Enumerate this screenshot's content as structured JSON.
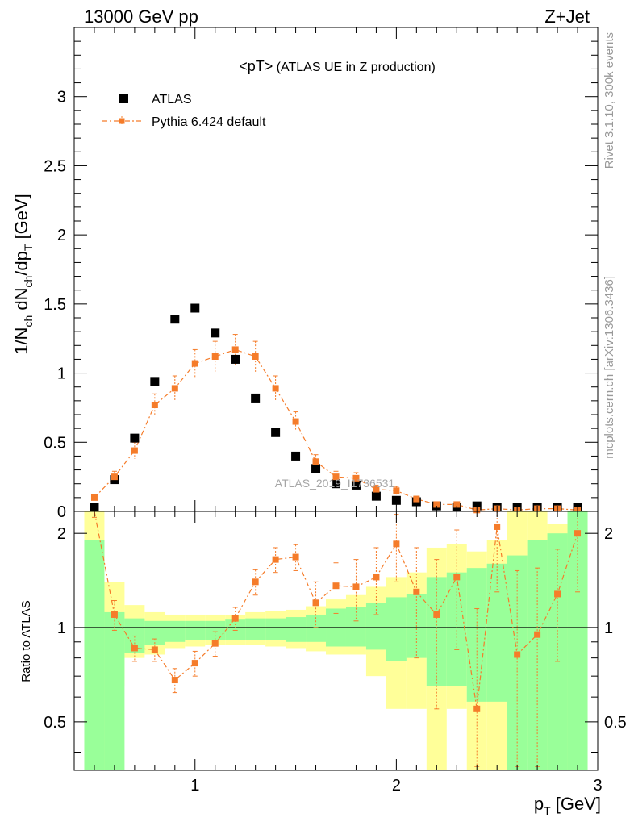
{
  "header": {
    "left": "13000 GeV pp",
    "right": "Z+Jet"
  },
  "side_labels": {
    "rivet": "Rivet 3.1.10,  300k events",
    "mcplots": "mcplots.cern.ch [arXiv:1306.3436]"
  },
  "main_plot": {
    "title_main": "<pT>",
    "title_sub": " (ATLAS UE in Z production)",
    "watermark": "ATLAS_2019_I1736531",
    "legend": [
      "ATLAS",
      "Pythia 6.424 default"
    ]
  },
  "ratio_plot": {
    "ylabel": "Ratio to ATLAS"
  },
  "colors": {
    "data": "#000000",
    "mc": "#f57c2a",
    "band_inner": "#99ff99",
    "band_outer": "#ffff99"
  },
  "chart_data": [
    {
      "type": "scatter",
      "ylabel_parts": [
        "1/N",
        "ch",
        " dN",
        "ch",
        "/dp",
        "T",
        " [GeV]"
      ],
      "xlabel_parts": [
        "p",
        "T",
        " [GeV]"
      ],
      "xlim": [
        0.4,
        3.0
      ],
      "ylim": [
        0,
        3.5
      ],
      "y_ticks": [
        0,
        0.5,
        1,
        1.5,
        2,
        2.5,
        3
      ],
      "y_tick_labels": [
        "0",
        "0.5",
        "1",
        "1.5",
        "2",
        "2.5",
        "3"
      ],
      "x": [
        0.5,
        0.6,
        0.7,
        0.8,
        0.9,
        1.0,
        1.1,
        1.2,
        1.3,
        1.4,
        1.5,
        1.6,
        1.7,
        1.8,
        1.9,
        2.0,
        2.1,
        2.2,
        2.3,
        2.4,
        2.5,
        2.6,
        2.7,
        2.8,
        2.9
      ],
      "series": [
        {
          "name": "ATLAS",
          "values": [
            0.03,
            0.23,
            0.53,
            0.94,
            1.39,
            1.47,
            1.29,
            1.1,
            0.82,
            0.57,
            0.4,
            0.31,
            0.2,
            0.19,
            0.11,
            0.08,
            0.07,
            0.04,
            0.03,
            0.04,
            0.01,
            0.02,
            0.03,
            0.01,
            0.005
          ]
        },
        {
          "name": "Pythia 6.424 default",
          "values": [
            0.1,
            0.25,
            0.44,
            0.77,
            0.89,
            1.07,
            1.12,
            1.17,
            1.12,
            0.89,
            0.65,
            0.36,
            0.25,
            0.24,
            0.16,
            0.15,
            0.09,
            0.05,
            0.05,
            0.01,
            0.02,
            0.01,
            0.02,
            0.02,
            0.01
          ],
          "errors": [
            0.02,
            0.04,
            0.06,
            0.08,
            0.09,
            0.1,
            0.11,
            0.11,
            0.11,
            0.09,
            0.07,
            0.05,
            0.04,
            0.04,
            0.03,
            0.03,
            0.02,
            0.02,
            0.02,
            0.01,
            0.01,
            0.01,
            0.01,
            0.01,
            0.01
          ]
        }
      ]
    },
    {
      "type": "scatter",
      "xlabel_parts": [
        "p",
        "T",
        " [GeV]"
      ],
      "ylabel": "Ratio to ATLAS",
      "xlim": [
        0.4,
        3.0
      ],
      "ylim": [
        0.35,
        2.35
      ],
      "y_ticks": [
        0.5,
        1,
        2
      ],
      "y_tick_labels": [
        "0.5",
        "1",
        "2"
      ],
      "x_ticks": [
        1,
        2,
        3
      ],
      "x_tick_labels": [
        "1",
        "2",
        "3"
      ],
      "x": [
        0.5,
        0.6,
        0.7,
        0.8,
        0.9,
        1.0,
        1.1,
        1.2,
        1.3,
        1.4,
        1.5,
        1.6,
        1.7,
        1.8,
        1.9,
        2.0,
        2.1,
        2.2,
        2.3,
        2.4,
        2.5,
        2.6,
        2.7,
        2.8,
        2.9
      ],
      "bin_edges": [
        0.45,
        0.55,
        0.65,
        0.75,
        0.85,
        0.95,
        1.05,
        1.15,
        1.25,
        1.35,
        1.45,
        1.55,
        1.65,
        1.75,
        1.85,
        1.95,
        2.05,
        2.15,
        2.25,
        2.35,
        2.45,
        2.55,
        2.65,
        2.75,
        2.85,
        2.95
      ],
      "band_inner": {
        "low": [
          0.3,
          0.3,
          0.83,
          0.88,
          0.9,
          0.91,
          0.91,
          0.91,
          0.91,
          0.91,
          0.9,
          0.9,
          0.87,
          0.87,
          0.85,
          0.78,
          0.8,
          0.65,
          0.65,
          0.58,
          0.58,
          0.3,
          0.3,
          0.3,
          0.3
        ],
        "high": [
          1.9,
          1.12,
          1.07,
          1.05,
          1.05,
          1.05,
          1.05,
          1.06,
          1.07,
          1.07,
          1.08,
          1.1,
          1.15,
          1.16,
          1.2,
          1.25,
          1.28,
          1.45,
          1.5,
          1.55,
          1.6,
          1.7,
          1.9,
          2.0,
          2.4
        ]
      },
      "band_outer": {
        "low": [
          0.3,
          0.65,
          0.8,
          0.82,
          0.86,
          0.87,
          0.88,
          0.88,
          0.88,
          0.87,
          0.86,
          0.84,
          0.82,
          0.82,
          0.7,
          0.55,
          0.55,
          0.3,
          0.55,
          0.3,
          0.3,
          0.3,
          0.38,
          0.3,
          0.3
        ],
        "high": [
          2.4,
          1.4,
          1.18,
          1.12,
          1.1,
          1.1,
          1.1,
          1.1,
          1.12,
          1.13,
          1.14,
          1.17,
          1.23,
          1.27,
          1.35,
          1.45,
          1.5,
          1.8,
          1.85,
          1.75,
          1.9,
          2.4,
          2.4,
          2.15,
          2.4
        ]
      },
      "series": [
        {
          "name": "Pythia 6.424 default",
          "values": [
            2.4,
            1.1,
            0.86,
            0.85,
            0.68,
            0.77,
            0.89,
            1.07,
            1.4,
            1.65,
            1.68,
            1.2,
            1.36,
            1.35,
            1.45,
            1.85,
            1.3,
            1.1,
            1.45,
            0.55,
            2.1,
            0.82,
            0.95,
            1.28,
            2.0
          ],
          "errors": [
            0.15,
            0.12,
            0.08,
            0.07,
            0.06,
            0.07,
            0.08,
            0.09,
            0.13,
            0.15,
            0.16,
            0.2,
            0.25,
            0.3,
            0.35,
            0.45,
            0.5,
            0.55,
            0.6,
            0.6,
            0.8,
            0.7,
            0.6,
            0.5,
            0.7
          ]
        }
      ]
    }
  ]
}
